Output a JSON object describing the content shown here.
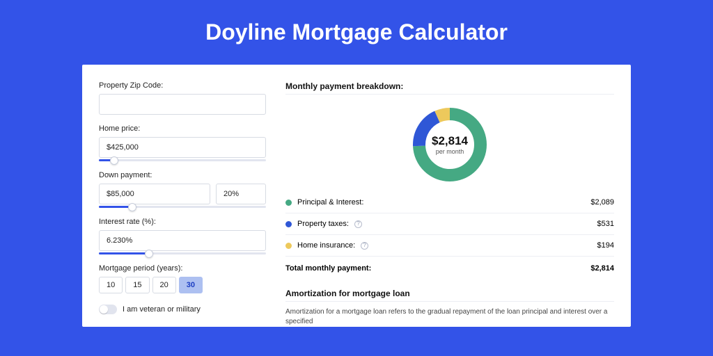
{
  "page": {
    "title": "Doyline Mortgage Calculator",
    "bg_color": "#3353e8"
  },
  "inputs": {
    "zip": {
      "label": "Property Zip Code:",
      "value": ""
    },
    "home_price": {
      "label": "Home price:",
      "value": "$425,000",
      "slider_pct": 9
    },
    "down_payment": {
      "label": "Down payment:",
      "amount": "$85,000",
      "percent": "20%",
      "slider_pct": 20
    },
    "interest": {
      "label": "Interest rate (%):",
      "value": "6.230%",
      "slider_pct": 30
    },
    "period": {
      "label": "Mortgage period (years):",
      "options": [
        "10",
        "15",
        "20",
        "30"
      ],
      "selected": "30"
    },
    "veteran": {
      "label": "I am veteran or military",
      "on": false
    }
  },
  "breakdown": {
    "title": "Monthly payment breakdown:",
    "total_amount": "$2,814",
    "total_sub": "per month",
    "items": [
      {
        "label": "Principal & Interest:",
        "value": "$2,089",
        "color": "#45a983",
        "pct": 74.2,
        "info": false
      },
      {
        "label": "Property taxes:",
        "value": "$531",
        "color": "#2f57d6",
        "pct": 18.9,
        "info": true
      },
      {
        "label": "Home insurance:",
        "value": "$194",
        "color": "#edc95c",
        "pct": 6.9,
        "info": true
      }
    ],
    "total_row": {
      "label": "Total monthly payment:",
      "value": "$2,814"
    }
  },
  "amort": {
    "title": "Amortization for mortgage loan",
    "text": "Amortization for a mortgage loan refers to the gradual repayment of the loan principal and interest over a specified"
  },
  "donut": {
    "size": 120,
    "radius": 44,
    "stroke": 18
  }
}
